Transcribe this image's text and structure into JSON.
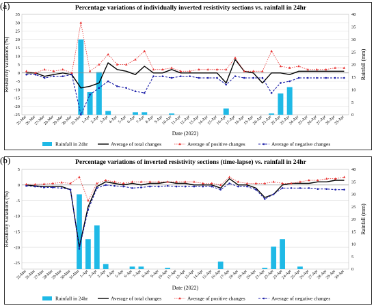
{
  "chart_data": [
    {
      "type": "line",
      "panel_letter": "(a)",
      "title": "Percentage variations of individually inverted resistivity sections vs. rainfall in 24hr",
      "xlabel": "Date (2022)",
      "ylabel": "Resistivity variations (%)",
      "y2label": "Rainfall (mm)",
      "ylim": [
        -25,
        35
      ],
      "yticks": [
        -25,
        -20,
        -15,
        -10,
        -5,
        0,
        5,
        10,
        15,
        20,
        25,
        30,
        35
      ],
      "y2lim": [
        0,
        40
      ],
      "y2ticks": [
        0,
        5,
        10,
        15,
        20,
        25,
        30,
        35,
        40
      ],
      "grid": true,
      "legend": "bottom",
      "categories": [
        "25-Mar",
        "26-Mar",
        "27-Mar",
        "28-Mar",
        "29-Mar",
        "30-Mar",
        "31-Mar",
        "1-Apr",
        "2-Apr",
        "3-Apr",
        "4-Apr",
        "5-Apr",
        "6-Apr",
        "7-Apr",
        "8-Apr",
        "9-Apr",
        "10-Apr",
        "11-Apr",
        "12-Apr",
        "13-Apr",
        "14-Apr",
        "15-Apr",
        "16-Apr",
        "17-Apr",
        "18-Apr",
        "19-Apr",
        "20-Apr",
        "21-Apr",
        "22-Apr",
        "23-Apr",
        "24-Apr",
        "25-Apr",
        "26-Apr",
        "27-Apr",
        "28-Apr",
        "29-Apr"
      ],
      "series": [
        {
          "name": "Rainfall in 24hr",
          "kind": "bar",
          "axis": "y2",
          "color": "#1fb9e6",
          "values": [
            0,
            0,
            0,
            0,
            0,
            0,
            30,
            9,
            17,
            1.5,
            0,
            0,
            1,
            1,
            0,
            0,
            0.5,
            0,
            0,
            0,
            0,
            0,
            2.5,
            0,
            0,
            0,
            0,
            0.5,
            8.5,
            11,
            0,
            0,
            0,
            0,
            0,
            0
          ]
        },
        {
          "name": "Average of total changes",
          "kind": "line",
          "axis": "y",
          "color": "#000000",
          "values": [
            0,
            0,
            -2,
            -1,
            0,
            -1,
            -9,
            -8,
            -6,
            6,
            2,
            1,
            -1,
            4,
            0,
            0,
            2,
            0,
            0,
            0,
            0,
            0,
            -6,
            8,
            1,
            0,
            -6,
            0,
            0,
            -1,
            1,
            1,
            1,
            1,
            1,
            1
          ]
        },
        {
          "name": "Average of positive changes",
          "kind": "line",
          "axis": "y",
          "color": "#e8302f",
          "values": [
            1,
            0,
            2,
            1,
            2,
            0,
            30,
            1,
            5,
            11,
            5,
            5,
            8,
            13,
            2,
            2,
            3,
            1,
            1,
            2,
            2,
            2,
            2,
            9,
            1,
            1,
            1,
            13,
            4,
            3,
            4,
            2,
            2,
            2,
            3,
            3
          ]
        },
        {
          "name": "Average of negative changes",
          "kind": "line",
          "axis": "y",
          "color": "#1c1fa8",
          "values": [
            -1,
            -1,
            -3,
            -2,
            -2,
            -1,
            -25,
            -13,
            -9,
            -5,
            -8,
            -9,
            -11,
            -12,
            -2,
            -2,
            -3,
            -2,
            -2,
            -3,
            -3,
            -3,
            -7,
            -2,
            -3,
            -3,
            -3,
            -12,
            -6,
            -5,
            -3,
            -3,
            -3,
            -3,
            -3,
            -3
          ]
        }
      ]
    },
    {
      "type": "line",
      "panel_letter": "(b)",
      "title": "Percentage variations of inverted resistivity sections (time-lapse) vs. rainfall in 24hr",
      "xlabel": "Date (2022)",
      "ylabel": "Resistivity variations (%)",
      "y2label": "Rainfall (mm)",
      "ylim": [
        -27,
        5
      ],
      "yticks": [
        -25,
        -20,
        -15,
        -10,
        -5,
        0,
        5
      ],
      "y2lim": [
        0,
        40
      ],
      "y2ticks": [
        0,
        5,
        10,
        15,
        20,
        25,
        30,
        35,
        40
      ],
      "grid": true,
      "legend": "bottom",
      "categories": [
        "25-Mar",
        "26-Mar",
        "27-Mar",
        "28-Mar",
        "29-Mar",
        "30-Mar",
        "31-Mar",
        "1-Apr",
        "2-Apr",
        "3-Apr",
        "4-Apr",
        "5-Apr",
        "6-Apr",
        "7-Apr",
        "8-Apr",
        "9-Apr",
        "10-Apr",
        "11-Apr",
        "12-Apr",
        "13-Apr",
        "14-Apr",
        "15-Apr",
        "16-Apr",
        "17-Apr",
        "18-Apr",
        "19-Apr",
        "20-Apr",
        "21-Apr",
        "22-Apr",
        "23-Apr",
        "24-Apr",
        "25-Apr",
        "26-Apr",
        "27-Apr",
        "28-Apr",
        "29-Apr",
        "30-Apr"
      ],
      "series": [
        {
          "name": "Rainfall in 24hr",
          "kind": "bar",
          "axis": "y2",
          "color": "#1fb9e6",
          "values": [
            0,
            0,
            0,
            0,
            0,
            0,
            30,
            12,
            17.5,
            2,
            0,
            0,
            1,
            1,
            0,
            0,
            0.5,
            0,
            0,
            0,
            0,
            0,
            3,
            0,
            0,
            0,
            0,
            0.5,
            9,
            12,
            0,
            1,
            0,
            0,
            0,
            0,
            0
          ]
        },
        {
          "name": "Average of total changes",
          "kind": "line",
          "axis": "y",
          "color": "#000000",
          "values": [
            0,
            -0.3,
            -0.5,
            -0.5,
            -0.5,
            -1.5,
            -20,
            -7,
            -0.5,
            1,
            0.5,
            0,
            0.5,
            0,
            0.5,
            0.5,
            1,
            0.5,
            0.5,
            0,
            0,
            0,
            -1,
            2,
            0,
            0,
            -1,
            -4,
            -3,
            0,
            0.5,
            0.5,
            0.5,
            1,
            1,
            1.5,
            1.5
          ]
        },
        {
          "name": "Average of positive changes",
          "kind": "line",
          "axis": "y",
          "color": "#e8302f",
          "values": [
            0.2,
            0.2,
            0.3,
            0.5,
            0.8,
            0.5,
            2.5,
            -5,
            0.5,
            1.5,
            1,
            0.5,
            1,
            1,
            1,
            1,
            1,
            1,
            1,
            1,
            0.5,
            0.5,
            0,
            2.5,
            1,
            0.5,
            0.5,
            0.5,
            1,
            0.5,
            0.5,
            1,
            1.5,
            1.5,
            2,
            2,
            2.5
          ]
        },
        {
          "name": "Average of negative changes",
          "kind": "line",
          "axis": "y",
          "color": "#1c1fa8",
          "values": [
            -0.3,
            -0.5,
            -0.8,
            -0.8,
            -1,
            -1.5,
            -20.5,
            -8,
            -1,
            0,
            -0.3,
            -0.5,
            -1,
            -0.8,
            -0.5,
            -0.5,
            -0.3,
            -0.5,
            -0.5,
            -0.5,
            -0.5,
            -0.5,
            -1.5,
            0.5,
            -0.5,
            -0.5,
            -1.5,
            -4.5,
            -3,
            -1,
            -1,
            -1,
            -1,
            -1.3,
            -1.3,
            -1.5,
            -1.5
          ]
        }
      ]
    }
  ]
}
